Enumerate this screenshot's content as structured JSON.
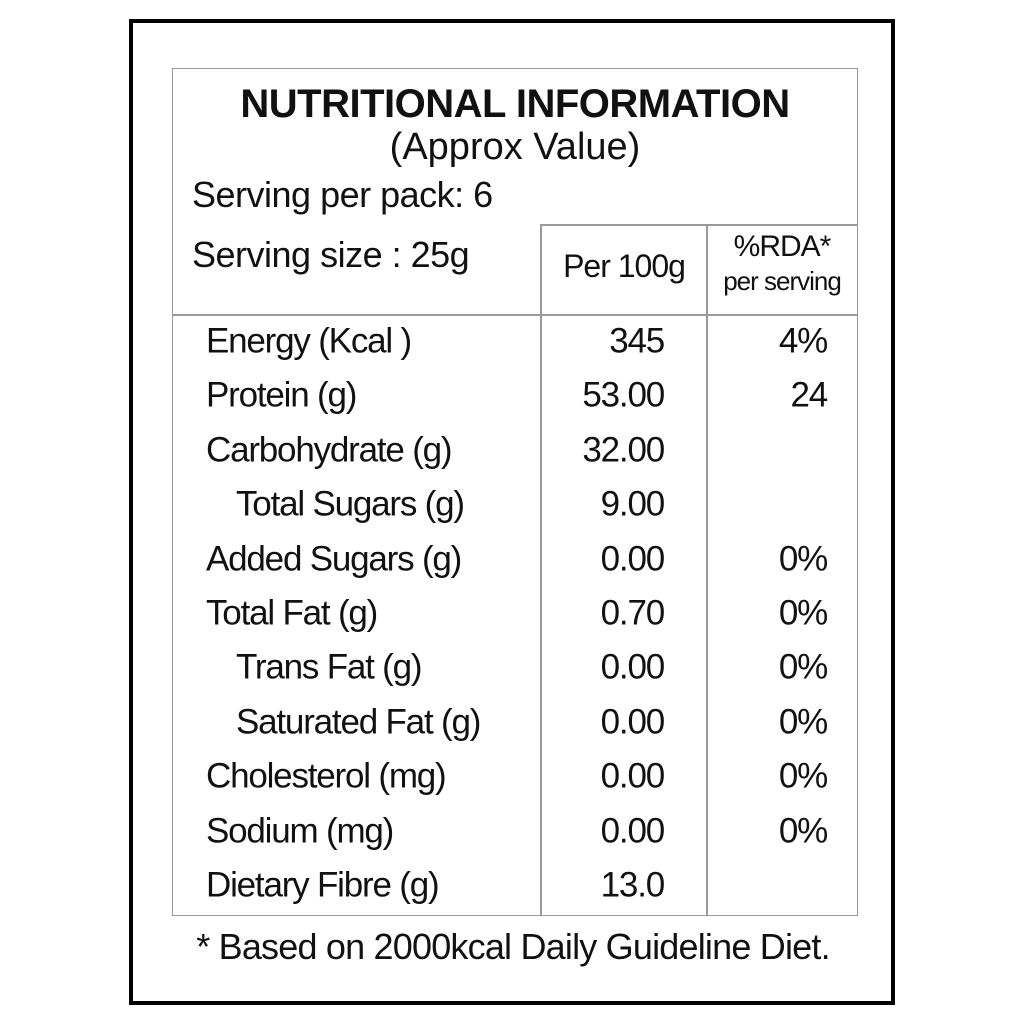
{
  "header": {
    "title": "NUTRITIONAL INFORMATION",
    "subtitle": "(Approx Value)",
    "serving_per_pack": "Serving per pack: 6",
    "serving_size": "Serving size : 25g"
  },
  "columns": {
    "per_100g": "Per 100g",
    "rda": "%RDA*",
    "rda_note": "per serving"
  },
  "table": {
    "rows": [
      {
        "label": "Energy (Kcal )",
        "per_100g": "345",
        "rda": "4%"
      },
      {
        "label": "Protein (g)",
        "per_100g": "53.00",
        "rda": "24"
      },
      {
        "label": "Carbohydrate (g)",
        "per_100g": "32.00"
      },
      {
        "label": "Total Sugars (g)",
        "per_100g": "9.00"
      },
      {
        "label": "Added Sugars (g)",
        "per_100g": "0.00",
        "rda": "0%"
      },
      {
        "label": "Total Fat (g)",
        "per_100g": "0.70",
        "rda": "0%"
      },
      {
        "label": "Trans Fat (g)",
        "per_100g": "0.00",
        "rda": "0%"
      },
      {
        "label": "Saturated Fat (g)",
        "per_100g": "0.00",
        "rda": "0%"
      },
      {
        "label": "Cholesterol (mg)",
        "per_100g": "0.00",
        "rda": "0%"
      },
      {
        "label": "Sodium (mg)",
        "per_100g": "0.00",
        "rda": "0%"
      },
      {
        "label": "Dietary Fibre (g)",
        "per_100g": "13.0"
      }
    ]
  },
  "footnote": "* Based on 2000kcal Daily Guideline Diet."
}
